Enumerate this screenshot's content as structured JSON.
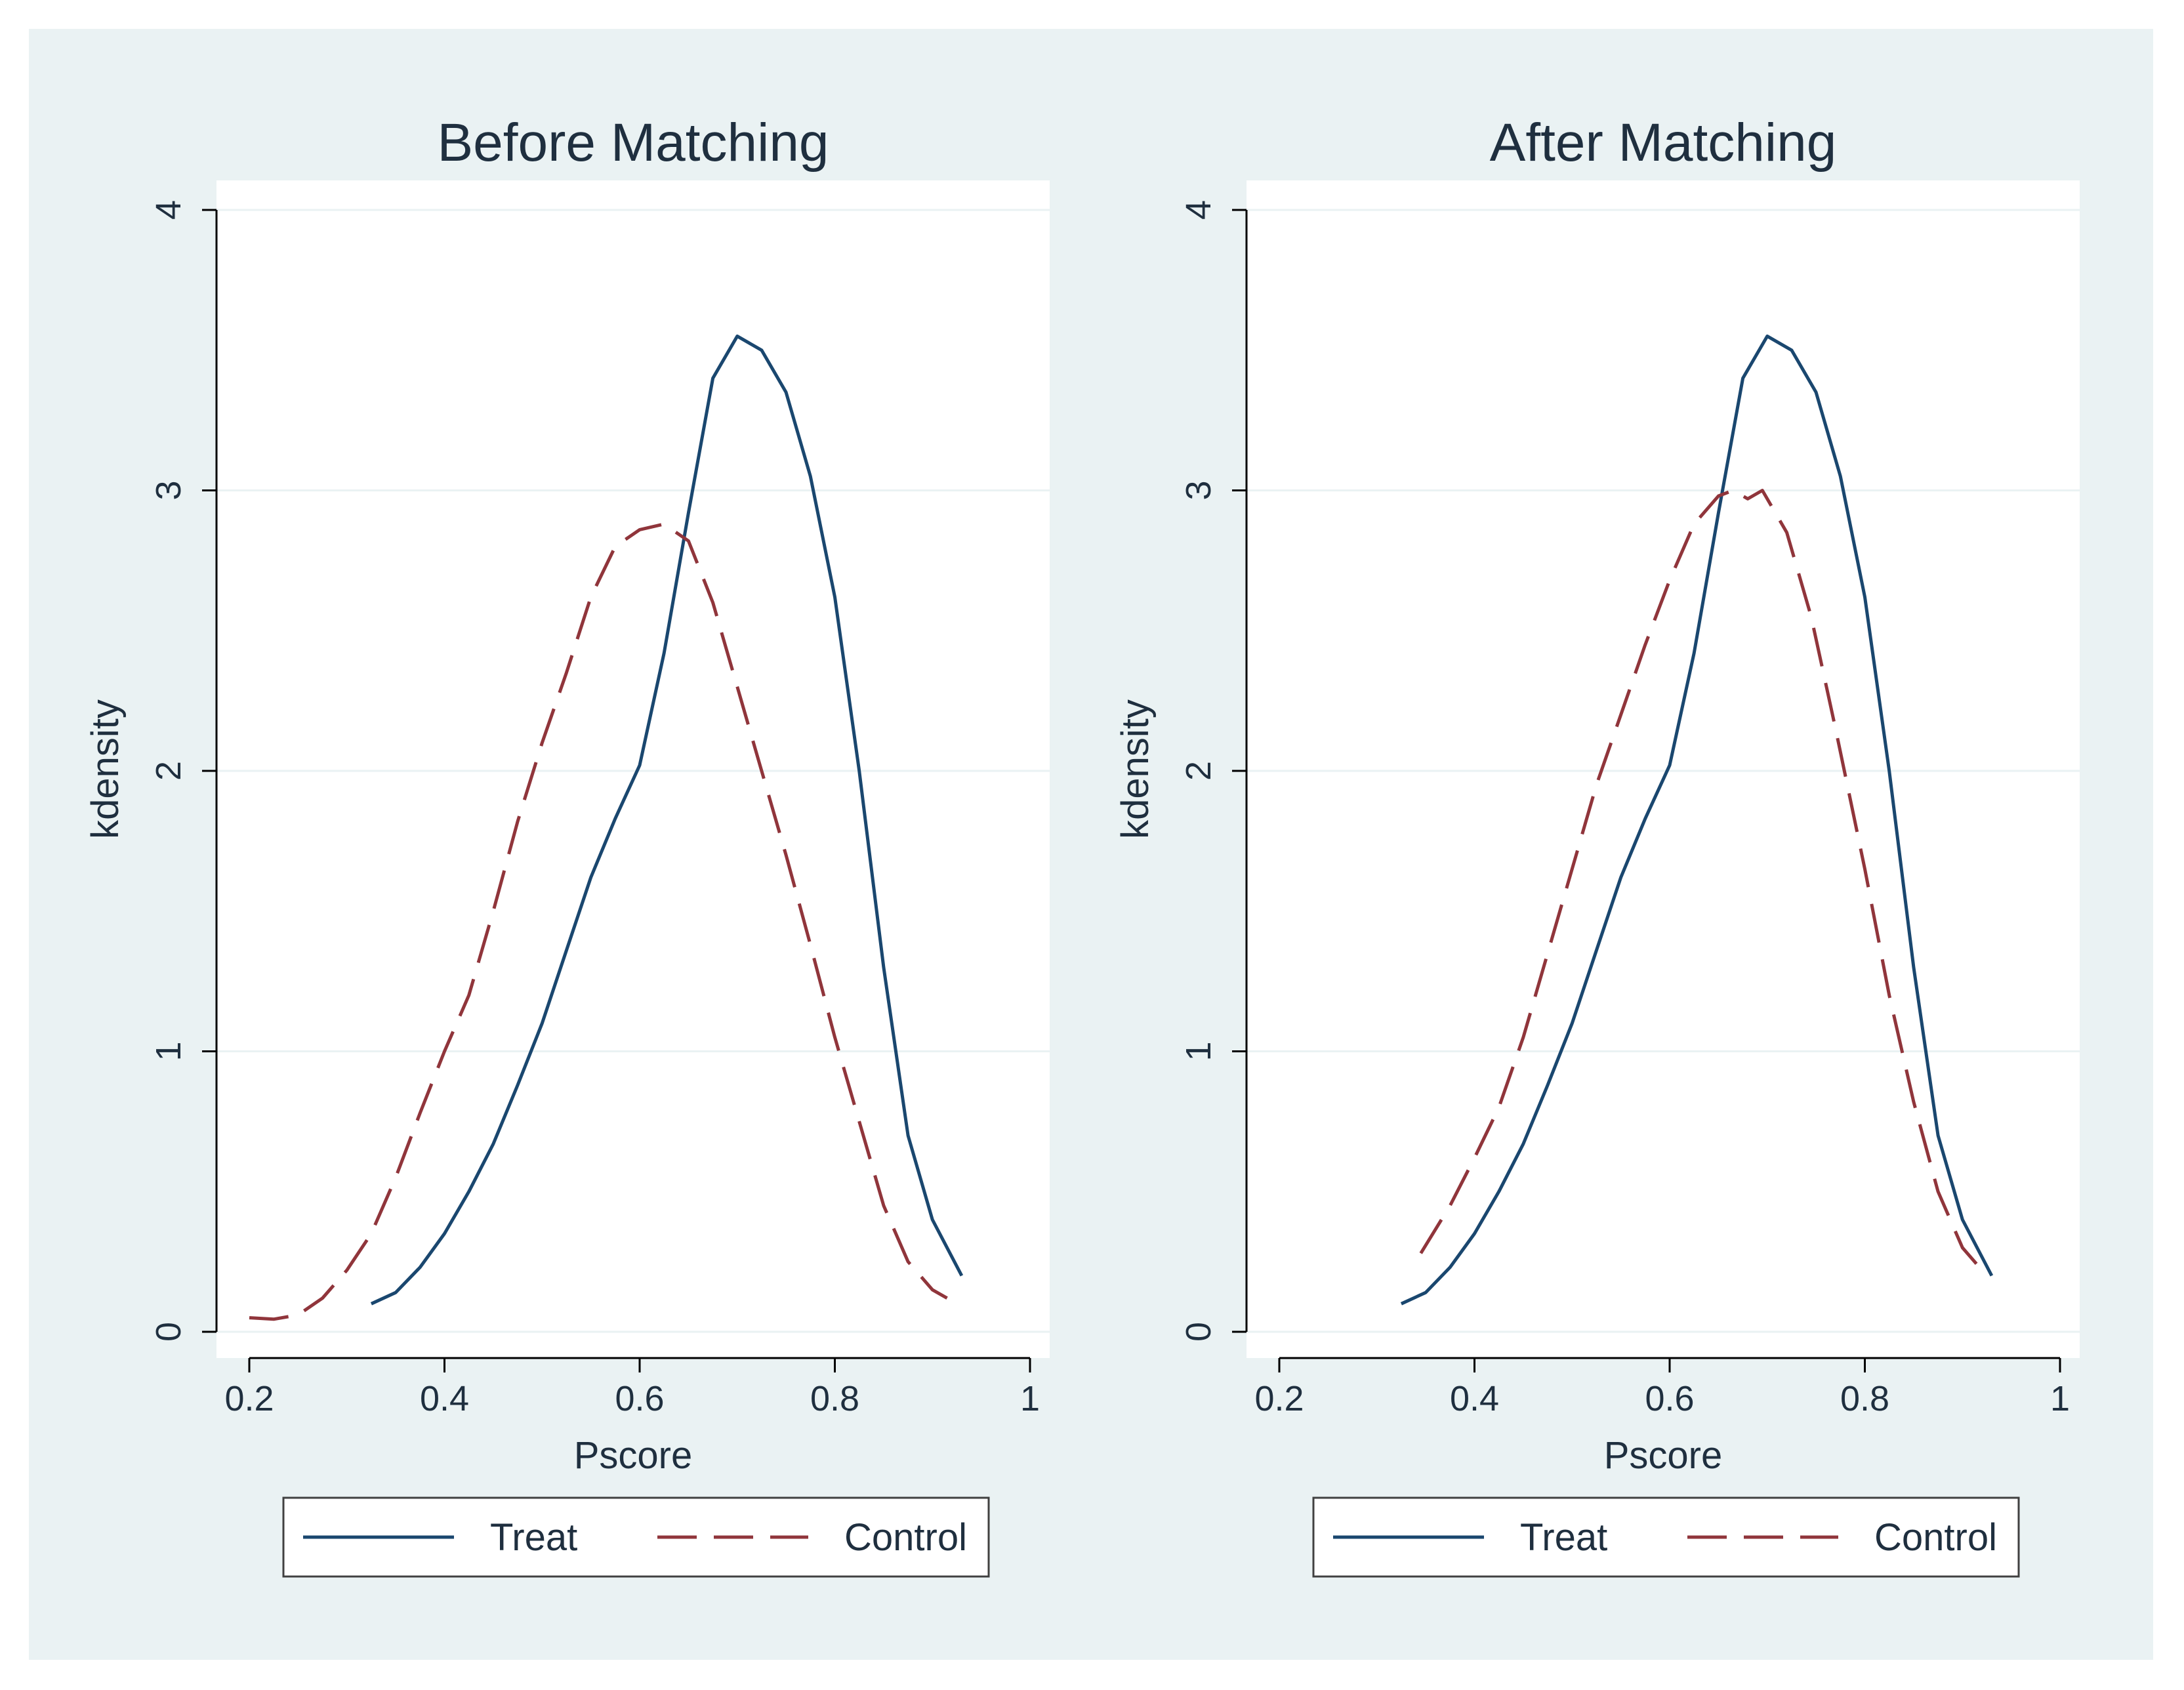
{
  "colors": {
    "background": "#eaf2f3",
    "plot_bg": "#ffffff",
    "grid": "#eaf2f3",
    "axis": "#000000",
    "text": "#1f2f3f",
    "treat": "#1a476f",
    "control": "#90353b"
  },
  "chart_data": [
    {
      "type": "line",
      "title": "Before Matching",
      "xlabel": "Pscore",
      "ylabel": "kdensity",
      "xlim": [
        0.2,
        1.0
      ],
      "ylim": [
        0,
        4
      ],
      "xticks": [
        0.2,
        0.4,
        0.6,
        0.8,
        1
      ],
      "xtick_labels": [
        "0.2",
        "0.4",
        "0.6",
        "0.8",
        "1"
      ],
      "yticks": [
        0,
        1,
        2,
        3,
        4
      ],
      "ytick_labels": [
        "0",
        "1",
        "2",
        "3",
        "4"
      ],
      "grid": true,
      "legend_position": "bottom",
      "series": [
        {
          "name": "Treat",
          "style": "solid",
          "x": [
            0.325,
            0.35,
            0.375,
            0.4,
            0.425,
            0.45,
            0.475,
            0.5,
            0.525,
            0.55,
            0.575,
            0.6,
            0.625,
            0.65,
            0.675,
            0.7,
            0.725,
            0.75,
            0.775,
            0.8,
            0.825,
            0.85,
            0.875,
            0.9,
            0.93
          ],
          "y": [
            0.1,
            0.14,
            0.23,
            0.35,
            0.5,
            0.67,
            0.88,
            1.1,
            1.36,
            1.62,
            1.83,
            2.02,
            2.42,
            2.92,
            3.4,
            3.55,
            3.5,
            3.35,
            3.05,
            2.62,
            2.0,
            1.3,
            0.7,
            0.4,
            0.2
          ]
        },
        {
          "name": "Control",
          "style": "dashed",
          "x": [
            0.2,
            0.225,
            0.25,
            0.275,
            0.3,
            0.325,
            0.35,
            0.375,
            0.4,
            0.425,
            0.45,
            0.475,
            0.5,
            0.525,
            0.55,
            0.575,
            0.6,
            0.625,
            0.65,
            0.675,
            0.7,
            0.725,
            0.75,
            0.775,
            0.8,
            0.825,
            0.85,
            0.875,
            0.9,
            0.915
          ],
          "y": [
            0.05,
            0.045,
            0.06,
            0.12,
            0.22,
            0.35,
            0.55,
            0.78,
            1.0,
            1.2,
            1.5,
            1.82,
            2.1,
            2.35,
            2.62,
            2.8,
            2.86,
            2.88,
            2.82,
            2.6,
            2.3,
            2.0,
            1.7,
            1.38,
            1.05,
            0.75,
            0.45,
            0.25,
            0.15,
            0.12
          ]
        }
      ]
    },
    {
      "type": "line",
      "title": "After Matching",
      "xlabel": "Pscore",
      "ylabel": "kdensity",
      "xlim": [
        0.2,
        1.0
      ],
      "ylim": [
        0,
        4
      ],
      "xticks": [
        0.2,
        0.4,
        0.6,
        0.8,
        1
      ],
      "xtick_labels": [
        "0.2",
        "0.4",
        "0.6",
        "0.8",
        "1"
      ],
      "yticks": [
        0,
        1,
        2,
        3,
        4
      ],
      "ytick_labels": [
        "0",
        "1",
        "2",
        "3",
        "4"
      ],
      "grid": true,
      "legend_position": "bottom",
      "series": [
        {
          "name": "Treat",
          "style": "solid",
          "x": [
            0.325,
            0.35,
            0.375,
            0.4,
            0.425,
            0.45,
            0.475,
            0.5,
            0.525,
            0.55,
            0.575,
            0.6,
            0.625,
            0.65,
            0.675,
            0.7,
            0.725,
            0.75,
            0.775,
            0.8,
            0.825,
            0.85,
            0.875,
            0.9,
            0.93
          ],
          "y": [
            0.1,
            0.14,
            0.23,
            0.35,
            0.5,
            0.67,
            0.88,
            1.1,
            1.36,
            1.62,
            1.83,
            2.02,
            2.42,
            2.92,
            3.4,
            3.55,
            3.5,
            3.35,
            3.05,
            2.62,
            2.0,
            1.3,
            0.7,
            0.4,
            0.2
          ]
        },
        {
          "name": "Control",
          "style": "dashed",
          "x": [
            0.345,
            0.375,
            0.4,
            0.425,
            0.45,
            0.475,
            0.5,
            0.525,
            0.55,
            0.575,
            0.6,
            0.625,
            0.65,
            0.665,
            0.68,
            0.695,
            0.72,
            0.745,
            0.77,
            0.8,
            0.825,
            0.85,
            0.875,
            0.9,
            0.92
          ],
          "y": [
            0.28,
            0.45,
            0.62,
            0.8,
            1.05,
            1.35,
            1.65,
            1.95,
            2.2,
            2.45,
            2.68,
            2.88,
            2.98,
            3.0,
            2.97,
            3.0,
            2.85,
            2.55,
            2.15,
            1.65,
            1.2,
            0.82,
            0.5,
            0.3,
            0.22
          ]
        }
      ]
    }
  ]
}
